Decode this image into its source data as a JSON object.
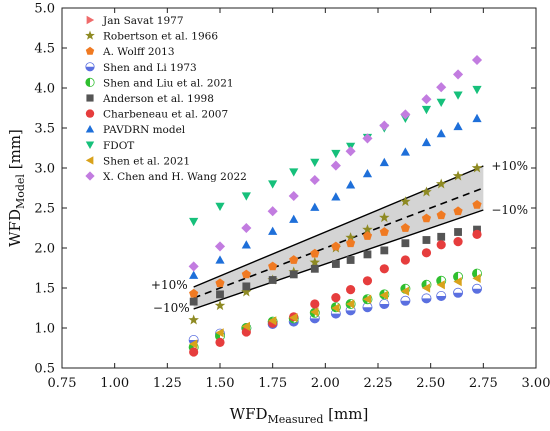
{
  "chart_data": {
    "type": "scatter",
    "xlim": [
      0.75,
      3.0
    ],
    "ylim": [
      0.5,
      5.0
    ],
    "x_ticks": [
      0.75,
      1.0,
      1.25,
      1.5,
      1.75,
      2.0,
      2.25,
      2.5,
      2.75,
      3.0
    ],
    "y_ticks": [
      0.5,
      1.0,
      1.5,
      2.0,
      2.5,
      3.0,
      3.5,
      4.0,
      4.5,
      5.0
    ],
    "x_tick_labels": [
      "0.75",
      "1.00",
      "1.25",
      "1.50",
      "1.75",
      "2.00",
      "2.25",
      "2.50",
      "2.75",
      "3.00"
    ],
    "y_tick_labels": [
      "0.5",
      "1.0",
      "1.5",
      "2.0",
      "2.5",
      "3.0",
      "3.5",
      "4.0",
      "4.5",
      "5.0"
    ],
    "xlabel": {
      "main": "WFD",
      "sub": "Measured",
      "unit": " [mm]"
    },
    "ylabel": {
      "main": "WFD",
      "sub": "Model",
      "unit": " [mm]"
    },
    "grid": false,
    "legend_position": "top-left",
    "band": {
      "label_upper": "+10%",
      "label_lower": "−10%",
      "x": [
        1.375,
        2.75
      ]
    },
    "series": [
      {
        "name": "Jan Savat 1977",
        "marker": "triangle-right",
        "color": "#ef6b6b",
        "x": [],
        "y": []
      },
      {
        "name": "Robertson et al. 1966",
        "marker": "star",
        "color": "#8e8a23",
        "x": [
          1.375,
          1.5,
          1.625,
          1.75,
          1.85,
          1.95,
          2.05,
          2.12,
          2.2,
          2.28,
          2.38,
          2.48,
          2.55,
          2.63,
          2.72
        ],
        "y": [
          1.1,
          1.28,
          1.45,
          1.6,
          1.7,
          1.82,
          2.0,
          2.13,
          2.23,
          2.38,
          2.58,
          2.7,
          2.8,
          2.9,
          3.0
        ]
      },
      {
        "name": "A. Wolff 2013",
        "marker": "pentagon",
        "color": "#f07a22",
        "x": [
          1.375,
          1.5,
          1.625,
          1.75,
          1.85,
          1.95,
          2.05,
          2.12,
          2.2,
          2.28,
          2.38,
          2.48,
          2.55,
          2.63,
          2.72
        ],
        "y": [
          1.43,
          1.56,
          1.67,
          1.77,
          1.85,
          1.93,
          2.02,
          2.06,
          2.15,
          2.2,
          2.25,
          2.37,
          2.41,
          2.46,
          2.54
        ]
      },
      {
        "name": "Shen and Li 1973",
        "marker": "half-circle",
        "color": "#5a6fe0",
        "x": [
          1.375,
          1.5,
          1.625,
          1.75,
          1.85,
          1.95,
          2.05,
          2.12,
          2.2,
          2.28,
          2.38,
          2.48,
          2.55,
          2.63,
          2.72
        ],
        "y": [
          0.85,
          0.93,
          1.0,
          1.05,
          1.08,
          1.12,
          1.18,
          1.22,
          1.26,
          1.3,
          1.34,
          1.37,
          1.4,
          1.44,
          1.49
        ]
      },
      {
        "name": "Shen and Liu et al. 2021",
        "marker": "half-circle-green",
        "color": "#2fbf2f",
        "x": [
          1.375,
          1.5,
          1.625,
          1.75,
          1.85,
          1.95,
          2.05,
          2.12,
          2.2,
          2.28,
          2.38,
          2.48,
          2.55,
          2.63,
          2.72
        ],
        "y": [
          0.76,
          0.9,
          1.0,
          1.08,
          1.12,
          1.19,
          1.26,
          1.3,
          1.36,
          1.42,
          1.49,
          1.54,
          1.59,
          1.64,
          1.68
        ]
      },
      {
        "name": "Anderson et al. 1998",
        "marker": "square",
        "color": "#555555",
        "x": [
          1.375,
          1.5,
          1.625,
          1.75,
          1.85,
          1.95,
          2.05,
          2.12,
          2.2,
          2.28,
          2.38,
          2.48,
          2.55,
          2.63,
          2.72
        ],
        "y": [
          1.33,
          1.42,
          1.52,
          1.6,
          1.67,
          1.74,
          1.8,
          1.85,
          1.92,
          1.97,
          2.06,
          2.1,
          2.14,
          2.2,
          2.23
        ]
      },
      {
        "name": "Charbeneau et al. 2007",
        "marker": "circle",
        "color": "#e63d3d",
        "x": [
          1.375,
          1.5,
          1.625,
          1.75,
          1.85,
          1.95,
          2.05,
          2.12,
          2.2,
          2.28,
          2.38,
          2.48,
          2.55,
          2.63,
          2.72
        ],
        "y": [
          0.7,
          0.82,
          0.95,
          1.06,
          1.14,
          1.3,
          1.38,
          1.48,
          1.59,
          1.74,
          1.85,
          1.94,
          2.04,
          2.08,
          2.17
        ]
      },
      {
        "name": "PAVDRN model",
        "marker": "triangle-up",
        "color": "#1e6fd9",
        "x": [
          1.375,
          1.5,
          1.625,
          1.75,
          1.85,
          1.95,
          2.05,
          2.12,
          2.2,
          2.28,
          2.38,
          2.48,
          2.55,
          2.63,
          2.72
        ],
        "y": [
          1.66,
          1.85,
          2.04,
          2.21,
          2.36,
          2.51,
          2.64,
          2.79,
          2.93,
          3.07,
          3.2,
          3.32,
          3.43,
          3.52,
          3.62
        ]
      },
      {
        "name": "FDOT",
        "marker": "triangle-down",
        "color": "#16c07b",
        "x": [
          1.375,
          1.5,
          1.625,
          1.75,
          1.85,
          1.95,
          2.05,
          2.12,
          2.2,
          2.28,
          2.38,
          2.48,
          2.55,
          2.63,
          2.72
        ],
        "y": [
          2.33,
          2.52,
          2.65,
          2.8,
          2.95,
          3.07,
          3.18,
          3.27,
          3.38,
          3.5,
          3.62,
          3.73,
          3.82,
          3.91,
          3.98
        ]
      },
      {
        "name": "Shen et al. 2021",
        "marker": "triangle-left",
        "color": "#d9a21b",
        "x": [
          1.375,
          1.5,
          1.625,
          1.75,
          1.85,
          1.95,
          2.05,
          2.12,
          2.2,
          2.28,
          2.38,
          2.48,
          2.55,
          2.63,
          2.72
        ],
        "y": [
          0.8,
          0.94,
          1.02,
          1.09,
          1.13,
          1.2,
          1.25,
          1.3,
          1.36,
          1.41,
          1.46,
          1.5,
          1.54,
          1.58,
          1.62
        ]
      },
      {
        "name": "X. Chen and H. Wang 2022",
        "marker": "diamond",
        "color": "#c27ce0",
        "x": [
          1.375,
          1.5,
          1.625,
          1.75,
          1.85,
          1.95,
          2.05,
          2.12,
          2.2,
          2.28,
          2.38,
          2.48,
          2.55,
          2.63,
          2.72
        ],
        "y": [
          1.77,
          2.02,
          2.25,
          2.46,
          2.65,
          2.85,
          3.03,
          3.21,
          3.37,
          3.53,
          3.67,
          3.86,
          4.01,
          4.17,
          4.35
        ]
      }
    ]
  }
}
